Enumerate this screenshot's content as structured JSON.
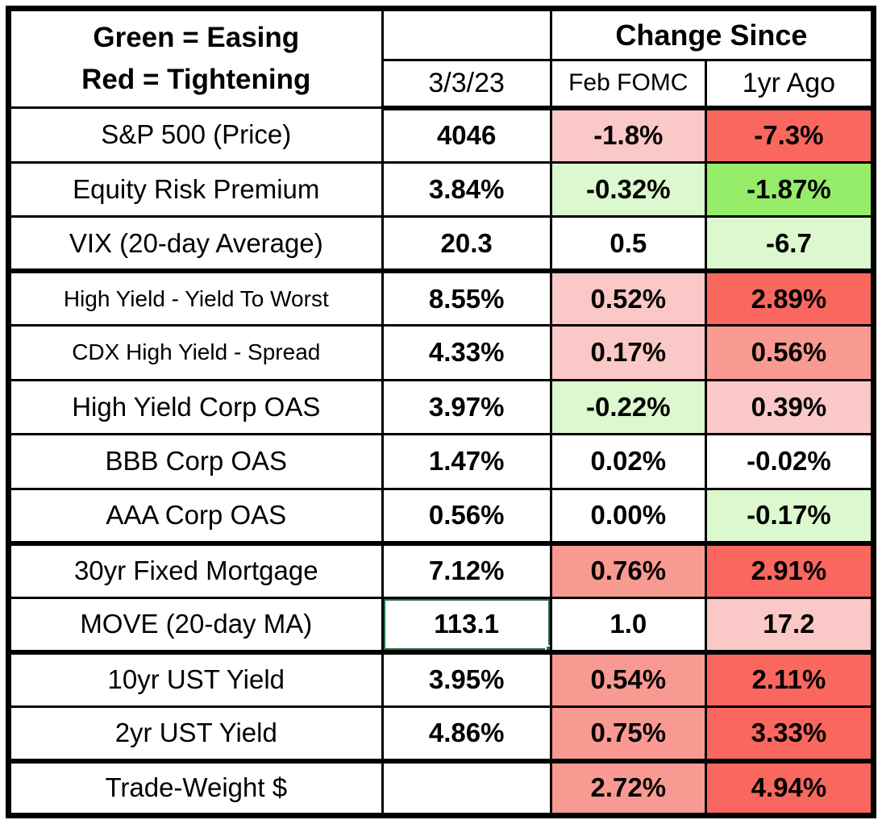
{
  "colors": {
    "pink": "#FAC8C6",
    "red_mid": "#F99A92",
    "red": "#F9675E",
    "green_light": "#DCF8CE",
    "green": "#95EC69",
    "selection_border": "#217346",
    "grid_border": "#000000",
    "none": ""
  },
  "chart_data": {
    "type": "table",
    "legend": [
      "Green = Easing",
      "Red = Tightening"
    ],
    "column_group": "Change Since",
    "columns": [
      "3/3/23",
      "Feb FOMC",
      "1yr Ago"
    ],
    "rows": [
      {
        "label": "S&P 500 (Price)",
        "value": "4046",
        "feb": "-1.8%",
        "feb_bg": "pink",
        "yr": "-7.3%",
        "yr_bg": "red"
      },
      {
        "label": "Equity Risk Premium",
        "value": "3.84%",
        "feb": "-0.32%",
        "feb_bg": "green_light",
        "yr": "-1.87%",
        "yr_bg": "green"
      },
      {
        "label": "VIX (20-day Average)",
        "value": "20.3",
        "feb": "0.5",
        "feb_bg": "none",
        "yr": "-6.7",
        "yr_bg": "green_light"
      },
      {
        "label": "High Yield - Yield To Worst",
        "value": "8.55%",
        "feb": "0.52%",
        "feb_bg": "pink",
        "yr": "2.89%",
        "yr_bg": "red"
      },
      {
        "label": "CDX High Yield - Spread",
        "value": "4.33%",
        "feb": "0.17%",
        "feb_bg": "pink",
        "yr": "0.56%",
        "yr_bg": "red_mid"
      },
      {
        "label": "High Yield Corp OAS",
        "value": "3.97%",
        "feb": "-0.22%",
        "feb_bg": "green_light",
        "yr": "0.39%",
        "yr_bg": "pink"
      },
      {
        "label": "BBB Corp OAS",
        "value": "1.47%",
        "feb": "0.02%",
        "feb_bg": "none",
        "yr": "-0.02%",
        "yr_bg": "none"
      },
      {
        "label": "AAA Corp OAS",
        "value": "0.56%",
        "feb": "0.00%",
        "feb_bg": "none",
        "yr": "-0.17%",
        "yr_bg": "green_light"
      },
      {
        "label": "30yr Fixed Mortgage",
        "value": "7.12%",
        "feb": "0.76%",
        "feb_bg": "red_mid",
        "yr": "2.91%",
        "yr_bg": "red"
      },
      {
        "label": "MOVE (20-day MA)",
        "value": "113.1",
        "feb": "1.0",
        "feb_bg": "none",
        "yr": "17.2",
        "yr_bg": "pink"
      },
      {
        "label": "10yr UST Yield",
        "value": "3.95%",
        "feb": "0.54%",
        "feb_bg": "red_mid",
        "yr": "2.11%",
        "yr_bg": "red"
      },
      {
        "label": "2yr UST Yield",
        "value": "4.86%",
        "feb": "0.75%",
        "feb_bg": "red_mid",
        "yr": "3.33%",
        "yr_bg": "red"
      },
      {
        "label": "Trade-Weight $",
        "value": "",
        "feb": "2.72%",
        "feb_bg": "red_mid",
        "yr": "4.94%",
        "yr_bg": "red"
      }
    ]
  }
}
